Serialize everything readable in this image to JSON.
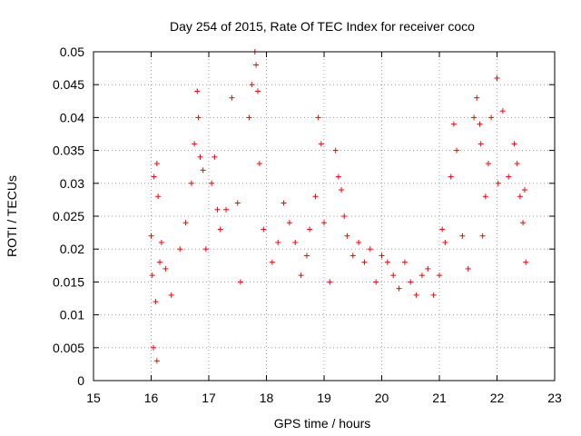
{
  "chart_data": {
    "type": "scatter",
    "title": "Day 254 of 2015, Rate Of TEC Index for receiver coco",
    "xlabel": "GPS time / hours",
    "ylabel": "ROTI / TECUs",
    "xlim": [
      15,
      23
    ],
    "ylim": [
      0,
      0.05
    ],
    "x_ticks": [
      "15",
      "16",
      "17",
      "18",
      "19",
      "20",
      "21",
      "22",
      "23"
    ],
    "y_ticks": [
      "0",
      "0.005",
      "0.01",
      "0.015",
      "0.02",
      "0.025",
      "0.03",
      "0.035",
      "0.04",
      "0.045",
      "0.05"
    ],
    "grid": true,
    "marker": "+",
    "series_color": "#ff0000",
    "series": [
      {
        "x": [
          16.0,
          16.02,
          16.05,
          16.1,
          16.12,
          16.18,
          16.08,
          16.04,
          16.15,
          16.1,
          16.25,
          16.35,
          16.5,
          16.6,
          16.7,
          16.75,
          16.8,
          16.82,
          16.85,
          16.9,
          16.95,
          17.05,
          17.1,
          17.15,
          17.2,
          17.3,
          17.4,
          17.5,
          17.55,
          17.7,
          17.75,
          17.8,
          17.82,
          17.85,
          17.88,
          17.95,
          18.1,
          18.2,
          18.3,
          18.4,
          18.5,
          18.6,
          18.7,
          18.75,
          18.85,
          18.9,
          18.95,
          19.0,
          19.1,
          19.2,
          19.25,
          19.3,
          19.35,
          19.4,
          19.5,
          19.6,
          19.7,
          19.8,
          19.9,
          20.0,
          20.1,
          20.2,
          20.3,
          20.4,
          20.5,
          20.6,
          20.7,
          20.8,
          20.9,
          21.0,
          21.05,
          21.1,
          21.2,
          21.25,
          21.3,
          21.4,
          21.5,
          21.6,
          21.65,
          21.7,
          21.72,
          21.75,
          21.8,
          21.85,
          21.9,
          22.0,
          22.02,
          22.1,
          22.2,
          22.3,
          22.35,
          22.4,
          22.45,
          22.5,
          22.48
        ],
        "y": [
          0.022,
          0.016,
          0.031,
          0.033,
          0.028,
          0.021,
          0.012,
          0.005,
          0.018,
          0.003,
          0.017,
          0.013,
          0.02,
          0.024,
          0.03,
          0.036,
          0.044,
          0.04,
          0.034,
          0.032,
          0.02,
          0.03,
          0.034,
          0.026,
          0.023,
          0.026,
          0.043,
          0.027,
          0.015,
          0.04,
          0.045,
          0.05,
          0.048,
          0.044,
          0.033,
          0.023,
          0.018,
          0.021,
          0.027,
          0.024,
          0.021,
          0.016,
          0.019,
          0.023,
          0.028,
          0.04,
          0.036,
          0.024,
          0.015,
          0.035,
          0.031,
          0.029,
          0.025,
          0.022,
          0.019,
          0.021,
          0.018,
          0.02,
          0.015,
          0.019,
          0.018,
          0.016,
          0.014,
          0.018,
          0.015,
          0.013,
          0.016,
          0.017,
          0.013,
          0.016,
          0.023,
          0.021,
          0.031,
          0.039,
          0.035,
          0.022,
          0.017,
          0.04,
          0.043,
          0.039,
          0.036,
          0.022,
          0.028,
          0.033,
          0.04,
          0.046,
          0.03,
          0.041,
          0.031,
          0.036,
          0.033,
          0.028,
          0.024,
          0.018,
          0.029
        ]
      }
    ]
  }
}
